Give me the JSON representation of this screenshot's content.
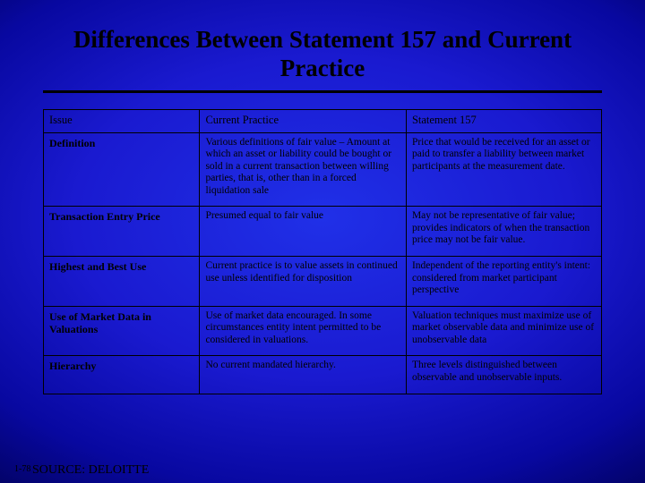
{
  "colors": {
    "bg_center": "#2030e8",
    "bg_edge": "#000018",
    "text": "#000000",
    "border": "#000000",
    "rule": "#000000"
  },
  "title": "Differences Between Statement 157 and Current Practice",
  "table": {
    "columns": [
      "Issue",
      "Current Practice",
      "Statement 157"
    ],
    "col_widths_pct": [
      28,
      37,
      35
    ],
    "header_fontsize_pt": 12.5,
    "body_fontsize_pt": 11.5,
    "rows": [
      {
        "issue": "Definition",
        "current": "Various definitions of fair value – Amount at which an asset or liability could be bought or sold in a current transaction between willing parties, that is, other than in a forced liquidation sale",
        "statement": "Price that would be received for an asset or paid to transfer a liability between market participants at the measurement date."
      },
      {
        "issue": "Transaction Entry Price",
        "current": "Presumed equal to fair value",
        "statement": "May not be representative of fair value; provides indicators of when the transaction price may not be fair value."
      },
      {
        "issue": "Highest and Best Use",
        "current": "Current practice is to value assets in continued use unless identified for disposition",
        "statement": "Independent of the reporting entity's intent: considered from market participant perspective"
      },
      {
        "issue": "Use of Market Data in Valuations",
        "current": "Use of market data encouraged.  In some circumstances entity intent permitted to be considered in valuations.",
        "statement": "Valuation techniques must maximize use of market observable data and minimize use of unobservable data"
      },
      {
        "issue": "Hierarchy",
        "current": "No current mandated hierarchy.",
        "statement": "Three levels distinguished between observable and unobservable inputs."
      }
    ]
  },
  "footer": {
    "page": "1-78",
    "source": "SOURCE: DELOITTE"
  }
}
